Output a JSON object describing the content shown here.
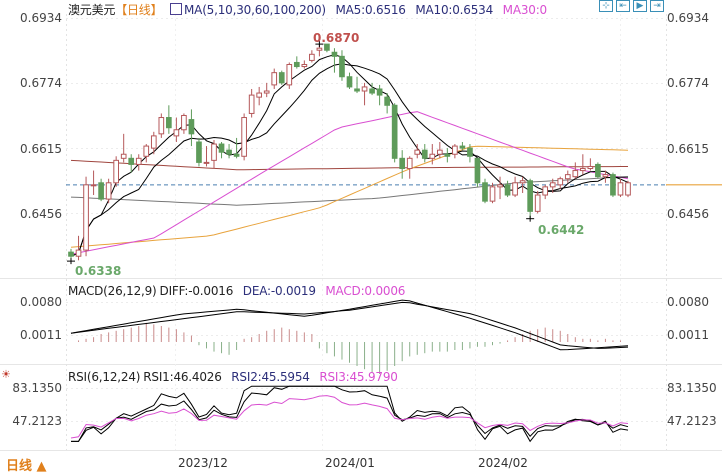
{
  "header": {
    "symbol": "澳元美元",
    "period_tag": "【日线】",
    "ma_label": "MA(5,10,30,60,100,200)",
    "ma5": "MA5:0.6516",
    "ma10": "MA10:0.6534",
    "ma30": "MA30:0"
  },
  "toolbar": {
    "icons": [
      {
        "name": "crosshair-icon",
        "glyph": "⊹"
      },
      {
        "name": "zoom-in-icon",
        "glyph": "⇤"
      },
      {
        "name": "step-forward-icon",
        "glyph": "▶"
      },
      {
        "name": "jump-end-icon",
        "glyph": "⇥"
      }
    ]
  },
  "price_axis": {
    "ticks": [
      "0.6934",
      "0.6774",
      "0.6615",
      "0.6456"
    ]
  },
  "annotations": {
    "high": "0.6870",
    "low1": "0.6338",
    "low2": "0.6442"
  },
  "macd": {
    "label": "MACD(26,12,9)",
    "diff": "DIFF:-0.0016",
    "dea": "DEA:-0.0019",
    "macd": "MACD:0.0006",
    "ticks": [
      "0.0080",
      "0.0011"
    ]
  },
  "rsi": {
    "label": "RSI(6,12,24)",
    "rsi1": "RSI1:46.4026",
    "rsi2": "RSI2:45.5954",
    "rsi3": "RSI3:45.9790",
    "ticks": [
      "83.1350",
      "47.2123"
    ]
  },
  "footer": {
    "period_button": "日线 ▲",
    "dates": [
      "2023/12",
      "2024/01",
      "2024/02"
    ]
  },
  "colors": {
    "up": "#b5585a",
    "down": "#5e9b5a",
    "ma5": "#000000",
    "ma10": "#000000",
    "ma30": "#d94fd1",
    "ma60": "#e8a33c",
    "ma100": "#a0463f",
    "ma200": "#777777",
    "title_blue": "#2c2f7a",
    "macd_pink": "#d94fd1",
    "high_red": "#c0504d",
    "low_green": "#6aa86a",
    "period_orange": "#e0801c"
  },
  "chart_data": {
    "type": "candlestick",
    "title": "澳元美元 【日线】 AUD/USD Daily",
    "x_ticks": [
      "2023/12",
      "2024/01",
      "2024/02"
    ],
    "ylim": [
      0.63,
      0.695
    ],
    "price_ticks": [
      0.6934,
      0.6774,
      0.6615,
      0.6456
    ],
    "current_price": 0.6525,
    "candles": [
      [
        0.636,
        0.6368,
        0.6338,
        0.635
      ],
      [
        0.635,
        0.64,
        0.634,
        0.6365
      ],
      [
        0.6365,
        0.6545,
        0.635,
        0.6525
      ],
      [
        0.6525,
        0.656,
        0.65,
        0.6525
      ],
      [
        0.653,
        0.654,
        0.6485,
        0.649
      ],
      [
        0.649,
        0.654,
        0.648,
        0.653
      ],
      [
        0.653,
        0.6595,
        0.652,
        0.6585
      ],
      [
        0.659,
        0.665,
        0.658,
        0.66
      ],
      [
        0.659,
        0.66,
        0.6555,
        0.6575
      ],
      [
        0.6575,
        0.66,
        0.656,
        0.659
      ],
      [
        0.6595,
        0.6625,
        0.658,
        0.662
      ],
      [
        0.6615,
        0.6655,
        0.66,
        0.6645
      ],
      [
        0.665,
        0.67,
        0.664,
        0.669
      ],
      [
        0.669,
        0.672,
        0.665,
        0.6665
      ],
      [
        0.6645,
        0.669,
        0.663,
        0.666
      ],
      [
        0.666,
        0.67,
        0.665,
        0.6695
      ],
      [
        0.6685,
        0.671,
        0.662,
        0.665
      ],
      [
        0.663,
        0.664,
        0.657,
        0.658
      ],
      [
        0.658,
        0.662,
        0.657,
        0.658
      ],
      [
        0.6585,
        0.6635,
        0.6565,
        0.6625
      ],
      [
        0.6625,
        0.663,
        0.659,
        0.6605
      ],
      [
        0.661,
        0.6625,
        0.659,
        0.66
      ],
      [
        0.66,
        0.664,
        0.659,
        0.6595
      ],
      [
        0.6595,
        0.67,
        0.6585,
        0.669
      ],
      [
        0.67,
        0.676,
        0.669,
        0.6745
      ],
      [
        0.674,
        0.6765,
        0.672,
        0.675
      ],
      [
        0.675,
        0.6775,
        0.674,
        0.6755
      ],
      [
        0.677,
        0.681,
        0.676,
        0.68
      ],
      [
        0.68,
        0.6805,
        0.677,
        0.6775
      ],
      [
        0.677,
        0.6825,
        0.676,
        0.682
      ],
      [
        0.6825,
        0.684,
        0.681,
        0.6815
      ],
      [
        0.6815,
        0.683,
        0.681,
        0.682
      ],
      [
        0.683,
        0.6855,
        0.6825,
        0.6845
      ],
      [
        0.6855,
        0.687,
        0.684,
        0.686
      ],
      [
        0.687,
        0.687,
        0.685,
        0.6855
      ],
      [
        0.685,
        0.686,
        0.68,
        0.684
      ],
      [
        0.684,
        0.6855,
        0.678,
        0.679
      ],
      [
        0.679,
        0.68,
        0.676,
        0.6765
      ],
      [
        0.676,
        0.679,
        0.675,
        0.6755
      ],
      [
        0.6755,
        0.6775,
        0.672,
        0.6765
      ],
      [
        0.676,
        0.6775,
        0.6745,
        0.675
      ],
      [
        0.676,
        0.677,
        0.672,
        0.6745
      ],
      [
        0.674,
        0.675,
        0.67,
        0.672
      ],
      [
        0.672,
        0.6725,
        0.658,
        0.659
      ],
      [
        0.659,
        0.661,
        0.654,
        0.6565
      ],
      [
        0.6565,
        0.6595,
        0.654,
        0.659
      ],
      [
        0.66,
        0.6625,
        0.659,
        0.661
      ],
      [
        0.661,
        0.6625,
        0.658,
        0.659
      ],
      [
        0.659,
        0.6625,
        0.6575,
        0.66
      ],
      [
        0.66,
        0.663,
        0.659,
        0.661
      ],
      [
        0.66,
        0.6615,
        0.658,
        0.6595
      ],
      [
        0.66,
        0.6625,
        0.659,
        0.662
      ],
      [
        0.662,
        0.663,
        0.661,
        0.6615
      ],
      [
        0.6615,
        0.6625,
        0.658,
        0.6595
      ],
      [
        0.659,
        0.659,
        0.652,
        0.653
      ],
      [
        0.653,
        0.654,
        0.648,
        0.6485
      ],
      [
        0.6485,
        0.653,
        0.648,
        0.652
      ],
      [
        0.652,
        0.6545,
        0.649,
        0.6525
      ],
      [
        0.6525,
        0.6535,
        0.6495,
        0.65
      ],
      [
        0.65,
        0.6545,
        0.6495,
        0.653
      ],
      [
        0.653,
        0.6545,
        0.6505,
        0.6535
      ],
      [
        0.6535,
        0.654,
        0.6442,
        0.646
      ],
      [
        0.646,
        0.651,
        0.6455,
        0.65
      ],
      [
        0.65,
        0.6525,
        0.649,
        0.652
      ],
      [
        0.652,
        0.654,
        0.6505,
        0.653
      ],
      [
        0.6525,
        0.6545,
        0.6515,
        0.654
      ],
      [
        0.654,
        0.656,
        0.653,
        0.655
      ],
      [
        0.6545,
        0.658,
        0.654,
        0.656
      ],
      [
        0.656,
        0.66,
        0.655,
        0.6565
      ],
      [
        0.6565,
        0.659,
        0.656,
        0.657
      ],
      [
        0.6575,
        0.658,
        0.654,
        0.6545
      ],
      [
        0.6545,
        0.656,
        0.653,
        0.655
      ],
      [
        0.655,
        0.6555,
        0.6495,
        0.65
      ],
      [
        0.65,
        0.654,
        0.6495,
        0.653
      ],
      [
        0.65,
        0.6535,
        0.6495,
        0.653
      ]
    ],
    "series": [
      {
        "name": "MA5",
        "last": 0.6516
      },
      {
        "name": "MA10",
        "last": 0.6534
      },
      {
        "name": "MA30"
      },
      {
        "name": "MA60"
      },
      {
        "name": "MA100"
      },
      {
        "name": "MA200"
      }
    ],
    "annotations": [
      {
        "text": "0.6870",
        "type": "high"
      },
      {
        "text": "0.6338",
        "type": "low"
      },
      {
        "text": "0.6442",
        "type": "low"
      }
    ],
    "indicators": [
      {
        "name": "MACD(26,12,9)",
        "DIFF": -0.0016,
        "DEA": -0.0019,
        "MACD": 0.0006,
        "ticks": [
          0.008,
          0.0011
        ]
      },
      {
        "name": "RSI(6,12,24)",
        "RSI1": 46.4026,
        "RSI2": 45.5954,
        "RSI3": 45.979,
        "ticks": [
          83.135,
          47.2123
        ]
      }
    ]
  }
}
